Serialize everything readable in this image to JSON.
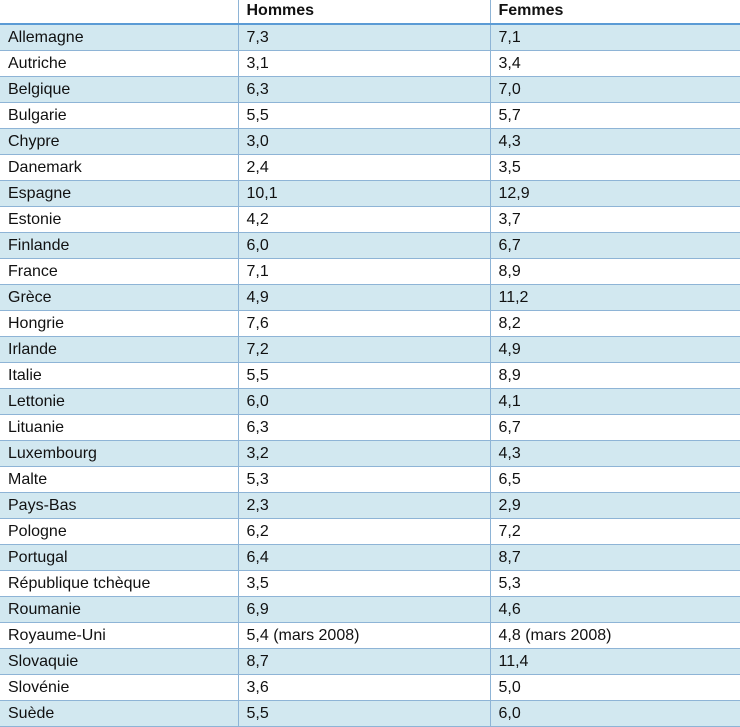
{
  "headers": [
    "",
    "Hommes",
    "Femmes"
  ],
  "rows": [
    [
      "Allemagne",
      "7,3",
      "7,1"
    ],
    [
      "Autriche",
      "3,1",
      "3,4"
    ],
    [
      "Belgique",
      "6,3",
      "7,0"
    ],
    [
      "Bulgarie",
      "5,5",
      "5,7"
    ],
    [
      "Chypre",
      "3,0",
      "4,3"
    ],
    [
      "Danemark",
      "2,4",
      "3,5"
    ],
    [
      "Espagne",
      "10,1",
      "12,9"
    ],
    [
      "Estonie",
      "4,2",
      "3,7"
    ],
    [
      "Finlande",
      "6,0",
      "6,7"
    ],
    [
      "France",
      "7,1",
      "8,9"
    ],
    [
      "Grèce",
      "4,9",
      "11,2"
    ],
    [
      "Hongrie",
      "7,6",
      "8,2"
    ],
    [
      "Irlande",
      "7,2",
      "4,9"
    ],
    [
      "Italie",
      "5,5",
      "8,9"
    ],
    [
      "Lettonie",
      "6,0",
      "4,1"
    ],
    [
      "Lituanie",
      "6,3",
      "6,7"
    ],
    [
      "Luxembourg",
      "3,2",
      "4,3"
    ],
    [
      "Malte",
      "5,3",
      "6,5"
    ],
    [
      "Pays-Bas",
      "2,3",
      "2,9"
    ],
    [
      "Pologne",
      "6,2",
      "7,2"
    ],
    [
      "Portugal",
      "6,4",
      "8,7"
    ],
    [
      "République tchèque",
      "3,5",
      "5,3"
    ],
    [
      "Roumanie",
      "6,9",
      "4,6"
    ],
    [
      "Royaume-Uni",
      "5,4 (mars 2008)",
      "4,8 (mars 2008)"
    ],
    [
      "Slovaquie",
      "8,7",
      "11,4"
    ],
    [
      "Slovénie",
      "3,6",
      "5,0"
    ],
    [
      "Suède",
      "5,5",
      "6,0"
    ]
  ]
}
